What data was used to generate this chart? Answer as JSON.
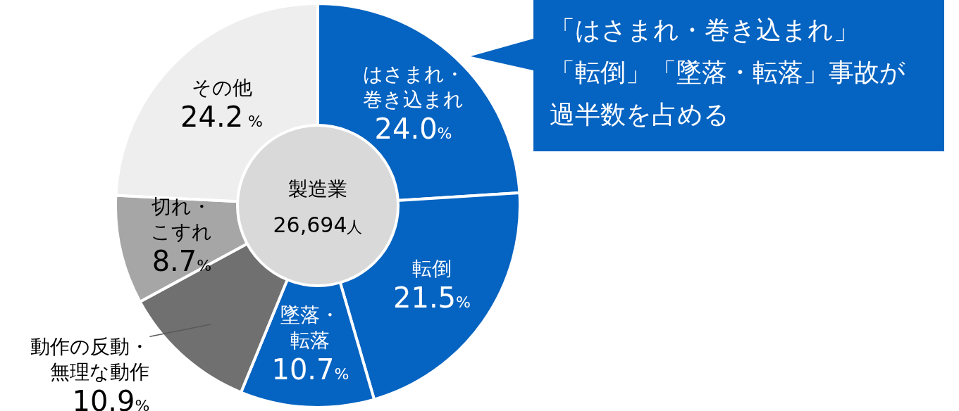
{
  "chart_data": {
    "type": "donut",
    "categories": [
      "はさまれ・巻き込まれ",
      "転倒",
      "墜落・転落",
      "動作の反動・無理な動作",
      "切れ・こすれ",
      "その他"
    ],
    "values": [
      24.0,
      21.5,
      10.7,
      10.9,
      8.7,
      24.2
    ],
    "colors": [
      "#0563c1",
      "#0563c1",
      "#0563c1",
      "#707070",
      "#a6a6a6",
      "#eeeeee"
    ],
    "value_labels": [
      "24.0%",
      "21.5%",
      "10.7%",
      "10.9%",
      "8.7%",
      "24.2 %"
    ],
    "annotations": [
      "製造業",
      "26,694人",
      "「はさまれ・巻き込まれ」「転倒」「墜落・転落」事故が過半数を占める"
    ],
    "legend": false
  }
}
